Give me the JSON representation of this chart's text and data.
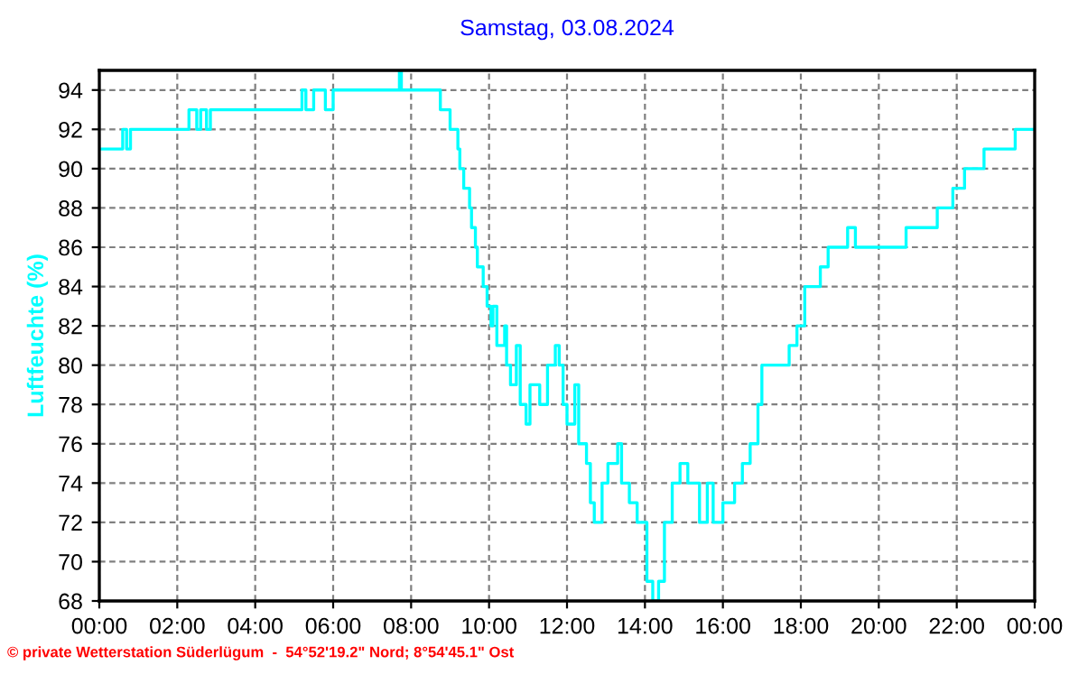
{
  "chart_data": {
    "type": "step",
    "title": "Samstag, 03.08.2024",
    "ylabel": "Luftfeuchte (%)",
    "annotations": [
      "© private Wetterstation Süderlügum  -  54°52'19.2\" Nord; 8°54'45.1\" Ost"
    ],
    "xlim": [
      0,
      24
    ],
    "ylim": [
      68,
      95
    ],
    "xticks": [
      {
        "value": 0,
        "label": "00:00"
      },
      {
        "value": 2,
        "label": "02:00"
      },
      {
        "value": 4,
        "label": "04:00"
      },
      {
        "value": 6,
        "label": "06:00"
      },
      {
        "value": 8,
        "label": "08:00"
      },
      {
        "value": 10,
        "label": "10:00"
      },
      {
        "value": 12,
        "label": "12:00"
      },
      {
        "value": 14,
        "label": "14:00"
      },
      {
        "value": 16,
        "label": "16:00"
      },
      {
        "value": 18,
        "label": "18:00"
      },
      {
        "value": 20,
        "label": "20:00"
      },
      {
        "value": 22,
        "label": "22:00"
      },
      {
        "value": 24,
        "label": "00:00"
      }
    ],
    "yticks": [
      68,
      70,
      72,
      74,
      76,
      78,
      80,
      82,
      84,
      86,
      88,
      90,
      92,
      94
    ],
    "grid": true,
    "legend": false,
    "line_style": "solid",
    "marker": "none",
    "series": [
      {
        "color": "#00ffff",
        "x": [
          0,
          0.6,
          0.7,
          0.8,
          2.3,
          2.5,
          2.6,
          2.75,
          2.85,
          5.2,
          5.3,
          5.5,
          5.8,
          6.0,
          7.7,
          7.75,
          8.75,
          9.0,
          9.2,
          9.25,
          9.35,
          9.5,
          9.55,
          9.65,
          9.7,
          9.85,
          9.95,
          10.05,
          10.1,
          10.2,
          10.4,
          10.45,
          10.55,
          10.7,
          10.8,
          10.95,
          11.05,
          11.3,
          11.5,
          11.7,
          11.8,
          11.9,
          12.0,
          12.2,
          12.3,
          12.5,
          12.6,
          12.7,
          12.9,
          13.05,
          13.3,
          13.4,
          13.6,
          13.8,
          14.05,
          14.2,
          14.35,
          14.5,
          14.7,
          14.9,
          15.1,
          15.4,
          15.6,
          15.75,
          16.0,
          16.3,
          16.5,
          16.7,
          16.9,
          17.0,
          17.6,
          17.7,
          17.9,
          18.1,
          18.3,
          18.5,
          18.7,
          19.2,
          19.4,
          20.7,
          21.5,
          21.9,
          22.2,
          22.7,
          23.5,
          24
        ],
        "values": [
          91,
          92,
          91,
          92,
          93,
          92,
          93,
          92,
          93,
          94,
          93,
          94,
          93,
          94,
          95,
          94,
          93,
          92,
          91,
          90,
          89,
          88,
          87,
          86,
          85,
          84,
          83,
          82,
          83,
          81,
          82,
          80,
          79,
          81,
          78,
          77,
          79,
          78,
          80,
          81,
          80,
          78,
          77,
          79,
          76,
          75,
          73,
          72,
          74,
          75,
          76,
          74,
          73,
          72,
          69,
          68,
          69,
          72,
          74,
          75,
          74,
          72,
          74,
          72,
          73,
          74,
          75,
          76,
          78,
          80,
          80,
          81,
          82,
          84,
          84,
          85,
          86,
          87,
          86,
          87,
          88,
          89,
          90,
          91,
          92,
          92
        ]
      }
    ]
  }
}
